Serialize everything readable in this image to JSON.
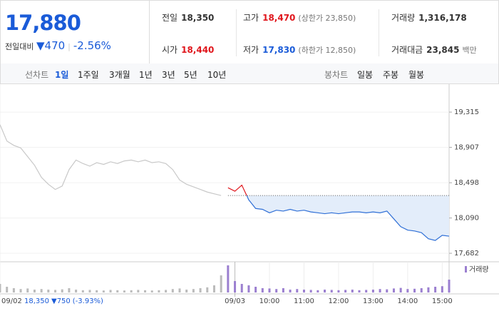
{
  "quote": {
    "price": "17,880",
    "change_label": "전일대비",
    "change": "▼470",
    "change_pct": "-2.56%"
  },
  "stats": [
    [
      {
        "label": "전일",
        "value": "18,350"
      },
      {
        "label": "고가",
        "value": "18,470",
        "color": "#e0161c",
        "note": "(상한가 23,850)"
      },
      {
        "label": "거래량",
        "value": "1,316,178"
      }
    ],
    [
      {
        "label": "시가",
        "value": "18,440",
        "color": "#e0161c"
      },
      {
        "label": "저가",
        "value": "17,830",
        "color": "#1a5bd8",
        "note": "(하한가 12,850)"
      },
      {
        "label": "거래대금",
        "value": "23,845",
        "note": "백만"
      }
    ]
  ],
  "tabs": {
    "line_label": "선차트",
    "line_periods": [
      "1일",
      "1주일",
      "3개월",
      "1년",
      "3년",
      "5년",
      "10년"
    ],
    "selected": 0,
    "candle_label": "봉차트",
    "candle_periods": [
      "일봉",
      "주봉",
      "월봉"
    ]
  },
  "chart": {
    "type": "line",
    "xlim": [
      0,
      130
    ],
    "ylim": [
      17600,
      19580
    ],
    "yticks": [
      {
        "value": 19315,
        "label": "19,315"
      },
      {
        "value": 18907,
        "label": "18,907"
      },
      {
        "value": 18498,
        "label": "18,498"
      },
      {
        "value": 18090,
        "label": "18,090"
      },
      {
        "value": 17682,
        "label": "17,682"
      }
    ],
    "xticks": [
      {
        "value": 0,
        "label": "09/02"
      },
      {
        "value": 68,
        "label": "09/03"
      },
      {
        "value": 78,
        "label": "10:00"
      },
      {
        "value": 88,
        "label": "11:00"
      },
      {
        "value": 98,
        "label": "12:00"
      },
      {
        "value": 108,
        "label": "13:00"
      },
      {
        "value": 118,
        "label": "14:00"
      },
      {
        "value": 128,
        "label": "15:00"
      }
    ],
    "prev_summary": {
      "close": "18,350",
      "change": "▼750",
      "change_pct": "(-3.93%)"
    },
    "baseline": 18350,
    "series": [
      {
        "color": "#c8c8c8",
        "x": [
          0,
          2,
          4,
          6,
          8,
          10,
          12,
          14,
          16,
          18,
          20,
          22,
          24,
          26,
          28,
          30,
          32,
          34,
          36,
          38,
          40,
          42,
          44,
          46,
          48,
          50,
          52,
          54,
          56,
          58,
          60,
          62,
          64
        ],
        "values": [
          19170,
          18980,
          18930,
          18900,
          18800,
          18700,
          18560,
          18480,
          18420,
          18460,
          18650,
          18760,
          18720,
          18690,
          18730,
          18710,
          18740,
          18720,
          18750,
          18760,
          18740,
          18760,
          18730,
          18740,
          18720,
          18650,
          18530,
          18480,
          18450,
          18420,
          18390,
          18370,
          18350
        ],
        "volume": [
          30,
          20,
          15,
          12,
          14,
          10,
          12,
          10,
          9,
          11,
          15,
          10,
          8,
          9,
          8,
          7,
          9,
          8,
          7,
          8,
          9,
          8,
          7,
          8,
          9,
          12,
          14,
          10,
          12,
          15,
          18,
          25,
          60
        ]
      },
      {
        "color": "#2f6fd6",
        "up_color": "#e0161c",
        "fill": "#e3edfa",
        "x": [
          66,
          68,
          70,
          72,
          74,
          76,
          78,
          80,
          82,
          84,
          86,
          88,
          90,
          92,
          94,
          96,
          98,
          100,
          102,
          104,
          106,
          108,
          110,
          112,
          114,
          116,
          118,
          120,
          122,
          124,
          126,
          128,
          130
        ],
        "values": [
          18440,
          18400,
          18470,
          18300,
          18200,
          18190,
          18150,
          18180,
          18170,
          18190,
          18170,
          18180,
          18160,
          18150,
          18140,
          18150,
          18140,
          18150,
          18160,
          18160,
          18150,
          18160,
          18150,
          18170,
          18080,
          17990,
          17950,
          17940,
          17920,
          17850,
          17830,
          17890,
          17880
        ],
        "volume": [
          95,
          40,
          30,
          25,
          20,
          15,
          14,
          12,
          15,
          10,
          12,
          10,
          9,
          8,
          10,
          9,
          8,
          9,
          10,
          8,
          9,
          10,
          12,
          11,
          14,
          16,
          12,
          13,
          15,
          18,
          20,
          22,
          45
        ]
      }
    ],
    "volume_lim": [
      0,
      100
    ],
    "volume_label": "거래량",
    "volume_color": "#9b7fd0"
  }
}
